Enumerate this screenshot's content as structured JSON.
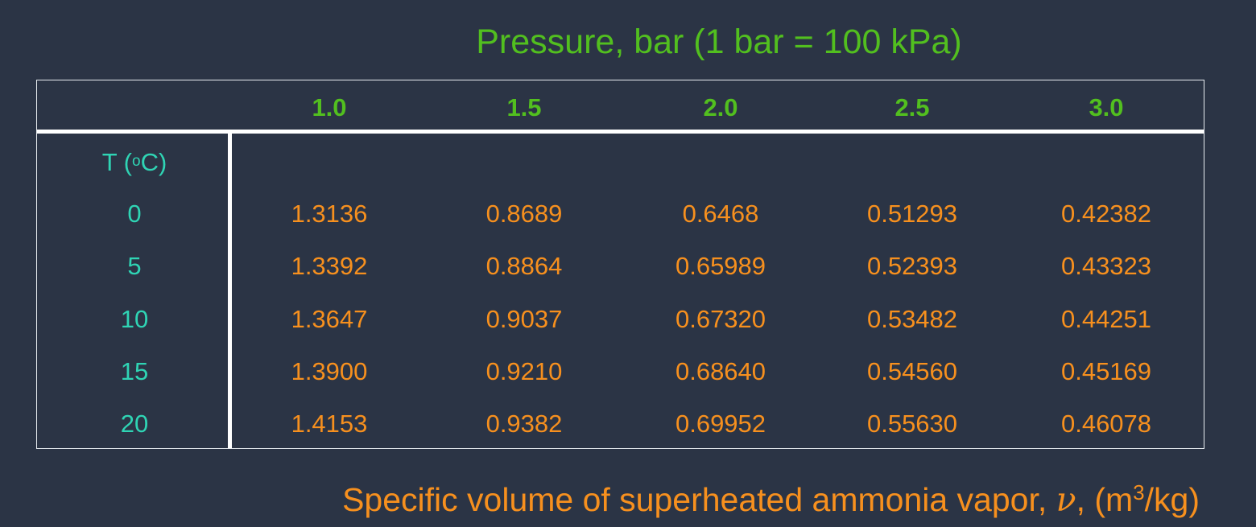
{
  "title": "Pressure, bar (1 bar = 100 kPa)",
  "table": {
    "pressures": [
      "1.0",
      "1.5",
      "2.0",
      "2.5",
      "3.0"
    ],
    "temp_header": {
      "prefix": "T (",
      "degree": "o",
      "suffix": "C)"
    },
    "rows": [
      {
        "t": "0",
        "values": [
          "1.3136",
          "0.8689",
          "0.6468",
          "0.51293",
          "0.42382"
        ]
      },
      {
        "t": "5",
        "values": [
          "1.3392",
          "0.8864",
          "0.65989",
          "0.52393",
          "0.43323"
        ]
      },
      {
        "t": "10",
        "values": [
          "1.3647",
          "0.9037",
          "0.67320",
          "0.53482",
          "0.44251"
        ]
      },
      {
        "t": "15",
        "values": [
          "1.3900",
          "0.9210",
          "0.68640",
          "0.54560",
          "0.45169"
        ]
      },
      {
        "t": "20",
        "values": [
          "1.4153",
          "0.9382",
          "0.69952",
          "0.55630",
          "0.46078"
        ]
      }
    ]
  },
  "caption": {
    "prefix": "Specific volume of superheated ammonia vapor,",
    "symbol": "ν",
    "unit_open": ", (m",
    "unit_exp": "3",
    "unit_close": "/kg)"
  },
  "colors": {
    "background": "#2b3445",
    "pressure": "#52bf1f",
    "temperature": "#2fd4b4",
    "values": "#f7901e",
    "grid": "#ffffff"
  }
}
